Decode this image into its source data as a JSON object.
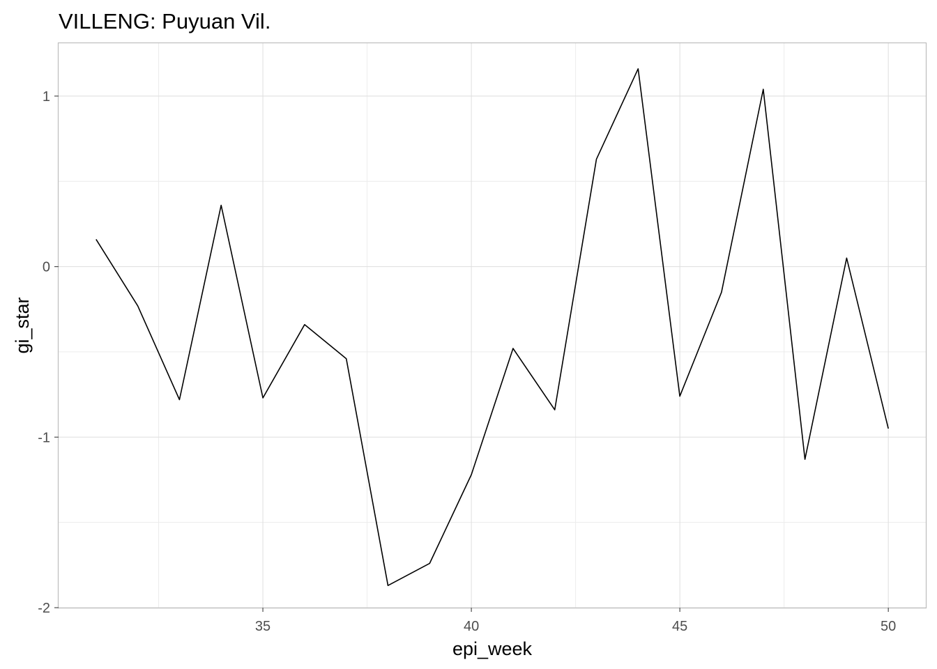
{
  "chart_data": {
    "type": "line",
    "title": "VILLENG: Puyuan Vil.",
    "xlabel": "epi_week",
    "ylabel": "gi_star",
    "x": [
      31,
      32,
      33,
      34,
      35,
      36,
      37,
      38,
      39,
      40,
      41,
      42,
      43,
      44,
      45,
      46,
      47,
      48,
      49,
      50
    ],
    "series": [
      {
        "values": [
          0.16,
          -0.23,
          -0.78,
          0.36,
          -0.77,
          -0.34,
          -0.54,
          -1.87,
          -1.74,
          -1.22,
          -0.48,
          -0.84,
          0.63,
          1.16,
          -0.76,
          -0.15,
          1.04,
          -1.13,
          0.05,
          -0.95
        ]
      }
    ],
    "xlim": [
      30.1,
      50.9
    ],
    "ylim": [
      -2.0,
      1.31
    ],
    "x_ticks": [
      35,
      40,
      45,
      50
    ],
    "y_ticks": [
      -2,
      -1,
      0,
      1
    ],
    "x_tick_labels": [
      "35",
      "40",
      "45",
      "50"
    ],
    "y_tick_labels": [
      "-2",
      "-1",
      "0",
      "1"
    ],
    "grid": true,
    "line_color": "#000000",
    "grid_color": "#dedede"
  }
}
